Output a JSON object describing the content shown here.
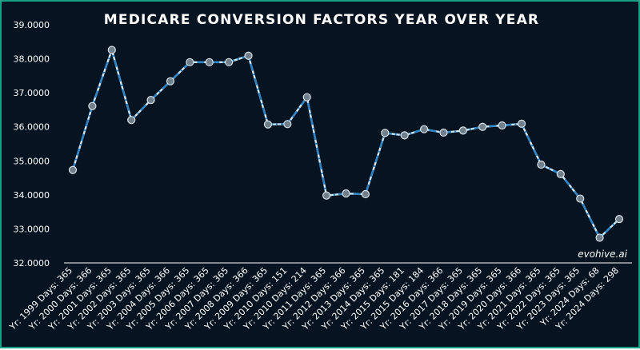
{
  "chart_data": {
    "type": "line",
    "title": "MEDICARE CONVERSION FACTORS YEAR OVER YEAR",
    "xlabel": "",
    "ylabel": "",
    "ylim": [
      32,
      39
    ],
    "y_ticks": [
      "32.0000",
      "33.0000",
      "34.0000",
      "35.0000",
      "36.0000",
      "37.0000",
      "38.0000",
      "39.0000"
    ],
    "grid": false,
    "watermark": "evohive.ai",
    "categories": [
      "Yr: 1999 Days: 365",
      "Yr: 2000 Days: 366",
      "Yr: 2001 Days: 365",
      "Yr: 2002 Days: 365",
      "Yr: 2003 Days: 365",
      "Yr: 2004 Days: 366",
      "Yr: 2005 Days: 365",
      "Yr: 2006 Days: 365",
      "Yr: 2007 Days: 365",
      "Yr: 2008 Days: 366",
      "Yr: 2009 Days: 365",
      "Yr: 2010 Days: 151",
      "Yr: 2010 Days: 214",
      "Yr: 2011 Days: 365",
      "Yr: 2012 Days: 366",
      "Yr: 2013 Days: 365",
      "Yr: 2014 Days: 365",
      "Yr: 2015 Days: 181",
      "Yr: 2015 Days: 184",
      "Yr: 2016 Days: 366",
      "Yr: 2017 Days: 365",
      "Yr: 2018 Days: 365",
      "Yr: 2019 Days: 365",
      "Yr: 2020 Days: 366",
      "Yr: 2021 Days: 365",
      "Yr: 2022 Days: 365",
      "Yr: 2023 Days: 365",
      "Yr: 2024 Days: 68",
      "Yr: 2024 Days: 298"
    ],
    "series": [
      {
        "values": [
          34.73,
          36.61,
          38.26,
          36.2,
          36.79,
          37.34,
          37.9,
          37.9,
          37.9,
          38.09,
          36.07,
          36.08,
          36.87,
          33.98,
          34.04,
          34.02,
          35.82,
          35.75,
          35.93,
          35.83,
          35.89,
          36.0,
          36.04,
          36.09,
          34.89,
          34.61,
          33.89,
          32.74,
          33.29
        ]
      }
    ],
    "colors": {
      "background": "#061320",
      "border": "#16a085",
      "line_light": "#cfe8f7",
      "line_dash": "#2e86c8",
      "marker": "#6f7f8c"
    }
  }
}
